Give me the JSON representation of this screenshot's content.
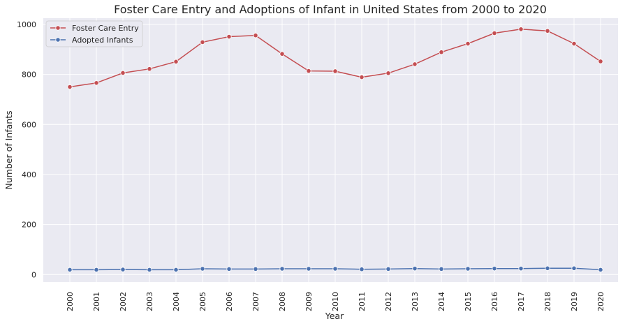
{
  "chart_data": {
    "type": "line",
    "title": "Foster Care Entry and Adoptions of Infant in United States from 2000 to 2020",
    "xlabel": "Year",
    "ylabel": "Number of Infants",
    "categories": [
      "2000",
      "2001",
      "2002",
      "2003",
      "2004",
      "2005",
      "2006",
      "2007",
      "2008",
      "2009",
      "2010",
      "2011",
      "2012",
      "2013",
      "2014",
      "2015",
      "2016",
      "2017",
      "2018",
      "2019",
      "2020"
    ],
    "ylim": [
      -30,
      1025
    ],
    "yticks": [
      0,
      200,
      400,
      600,
      800,
      1000
    ],
    "grid": true,
    "legend_position": "top-left",
    "series": [
      {
        "name": "Foster Care Entry",
        "color": "#c44e52",
        "values": [
          750,
          766,
          806,
          822,
          851,
          929,
          951,
          956,
          882,
          814,
          813,
          789,
          805,
          841,
          889,
          923,
          965,
          981,
          974,
          923,
          852
        ]
      },
      {
        "name": "Adopted Infants",
        "color": "#4c72b0",
        "values": [
          19,
          19,
          20,
          19,
          19,
          23,
          22,
          22,
          23,
          23,
          23,
          21,
          22,
          24,
          22,
          23,
          24,
          24,
          25,
          25,
          19
        ]
      }
    ]
  }
}
